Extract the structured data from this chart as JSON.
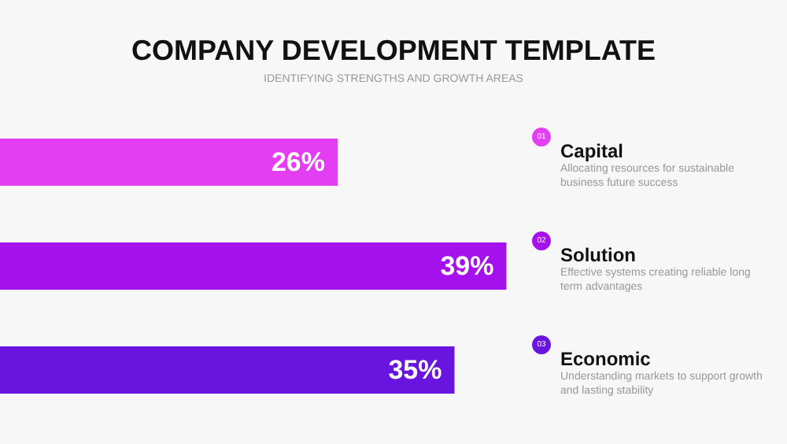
{
  "chart_data": {
    "type": "bar",
    "orientation": "horizontal",
    "title": "COMPANY DEVELOPMENT TEMPLATE",
    "subtitle": "IDENTIFYING STRENGTHS AND GROWTH AREAS",
    "categories": [
      "Capital",
      "Solution",
      "Economic"
    ],
    "values": [
      26,
      39,
      35
    ],
    "value_labels": [
      "26%",
      "39%",
      "35%"
    ],
    "colors": [
      "#e33ef2",
      "#a511ec",
      "#6a14e0"
    ],
    "annotations": [
      "01",
      "Allocating resources for sustainable business future success",
      "02",
      "Effective systems creating reliable long term advantages",
      "03",
      "Understanding markets to support growth and lasting stability"
    ]
  }
}
